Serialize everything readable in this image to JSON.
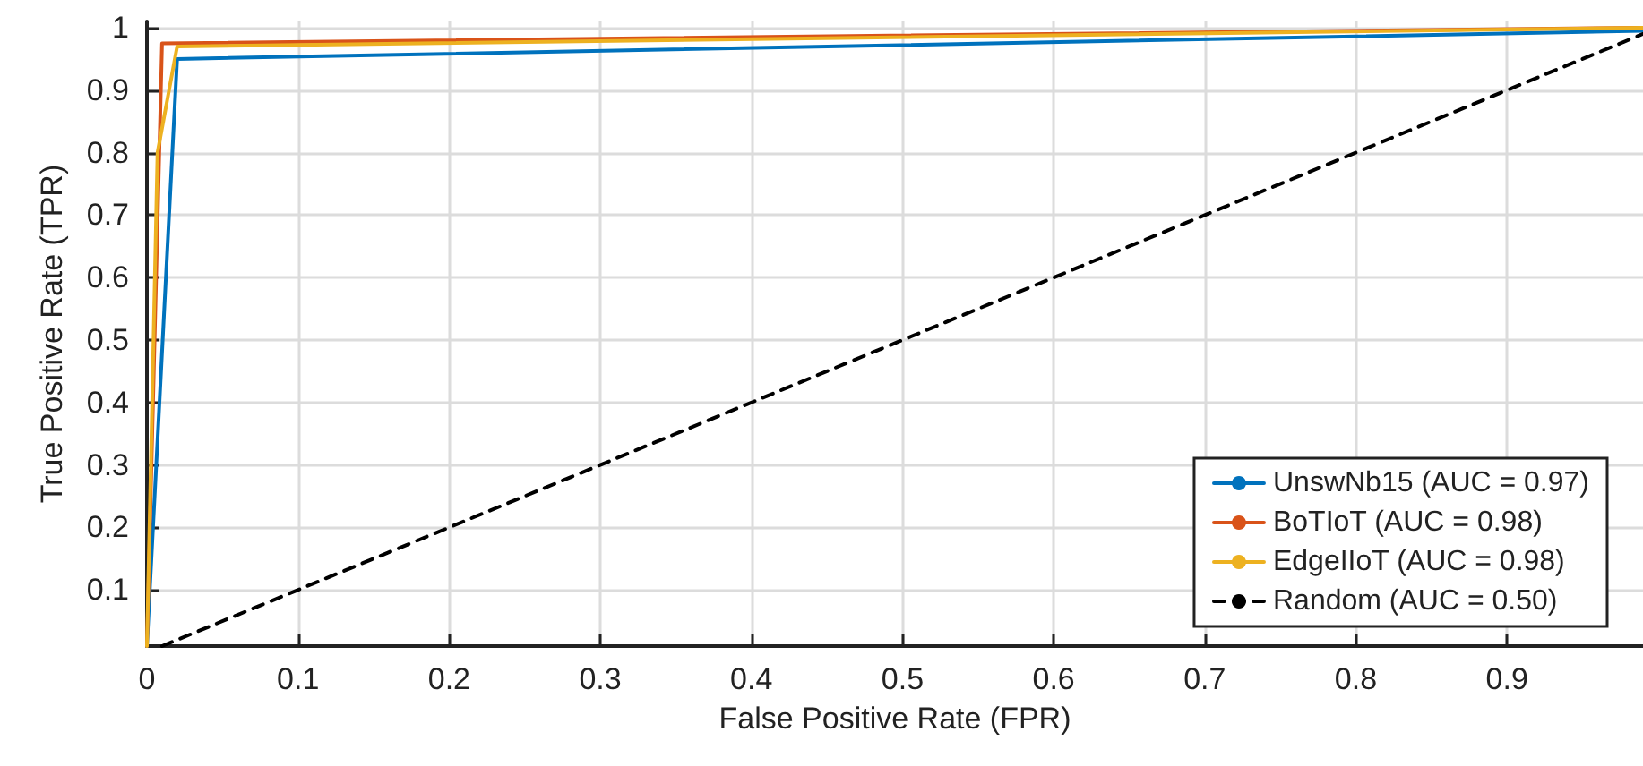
{
  "chart_data": {
    "type": "line",
    "xlabel": "False Positive Rate (FPR)",
    "ylabel": "True Positive Rate (TPR)",
    "xlim": [
      0,
      0.99
    ],
    "ylim": [
      0.01,
      1.01
    ],
    "xticks": [
      0,
      0.1,
      0.2,
      0.3,
      0.4,
      0.5,
      0.6,
      0.7,
      0.8,
      0.9
    ],
    "yticks": [
      0.1,
      0.2,
      0.3,
      0.4,
      0.5,
      0.6,
      0.7,
      0.8,
      0.9,
      1
    ],
    "grid": true,
    "legend": "bottom right",
    "marker": "none",
    "series": [
      {
        "name": "UnswNb15 (AUC = 0.97)",
        "color": "#0072bd",
        "x": [
          0,
          0.02,
          0.99
        ],
        "values": [
          0.01,
          0.95,
          0.995
        ]
      },
      {
        "name": "BoTIoT (AUC = 0.98)",
        "color": "#d95319",
        "x": [
          0,
          0.01,
          0.99
        ],
        "values": [
          0.01,
          0.975,
          1
        ]
      },
      {
        "name": "EdgeIIoT (AUC = 0.98)",
        "color": "#edb120",
        "x": [
          0,
          0.007,
          0.02,
          0.99
        ],
        "values": [
          0.01,
          0.8,
          0.97,
          1
        ]
      },
      {
        "name": "Random (AUC = 0.50)",
        "color": "#000000",
        "line_style": "dashed",
        "x": [
          0.01,
          0.99
        ],
        "values": [
          0.01,
          0.99
        ]
      }
    ]
  }
}
